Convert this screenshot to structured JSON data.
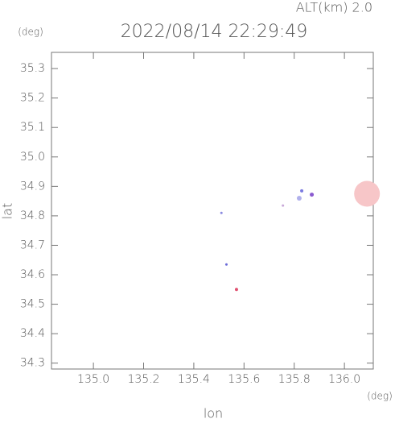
{
  "chart_data": {
    "type": "scatter",
    "title": "2022/08/14 22:29:49",
    "subtitle": "ALT(km) 2.0",
    "y_unit": "(deg)",
    "x_unit": "(deg)",
    "xlabel": "lon",
    "ylabel": "lat",
    "x": [
      136.09,
      135.83,
      135.82,
      135.87,
      135.755,
      135.51,
      135.53,
      135.57
    ],
    "values": [
      34.875,
      34.885,
      34.86,
      34.872,
      34.835,
      34.81,
      34.635,
      34.55
    ],
    "sizes": [
      16,
      2,
      3,
      2.5,
      1.5,
      1.5,
      1.5,
      2
    ],
    "colors": [
      "#f7c6c8",
      "#7a7ae0",
      "#b0b0ec",
      "#8a5ad0",
      "#c8a8d8",
      "#8a8ae0",
      "#6a6ad8",
      "#e05070"
    ],
    "xlim": [
      134.833,
      136.115
    ],
    "ylim": [
      34.28,
      35.355
    ],
    "xticks": [
      {
        "value": 135.0,
        "label": "135.0"
      },
      {
        "value": 135.2,
        "label": "135.2"
      },
      {
        "value": 135.4,
        "label": "135.4"
      },
      {
        "value": 135.6,
        "label": "135.6"
      },
      {
        "value": 135.8,
        "label": "135.8"
      },
      {
        "value": 136.0,
        "label": "136.0"
      }
    ],
    "yticks": [
      34.3,
      34.4,
      34.5,
      34.6,
      34.7,
      34.8,
      34.9,
      {
        "value": 35.0,
        "label": "35.0"
      },
      35.1,
      35.2,
      35.3
    ]
  }
}
